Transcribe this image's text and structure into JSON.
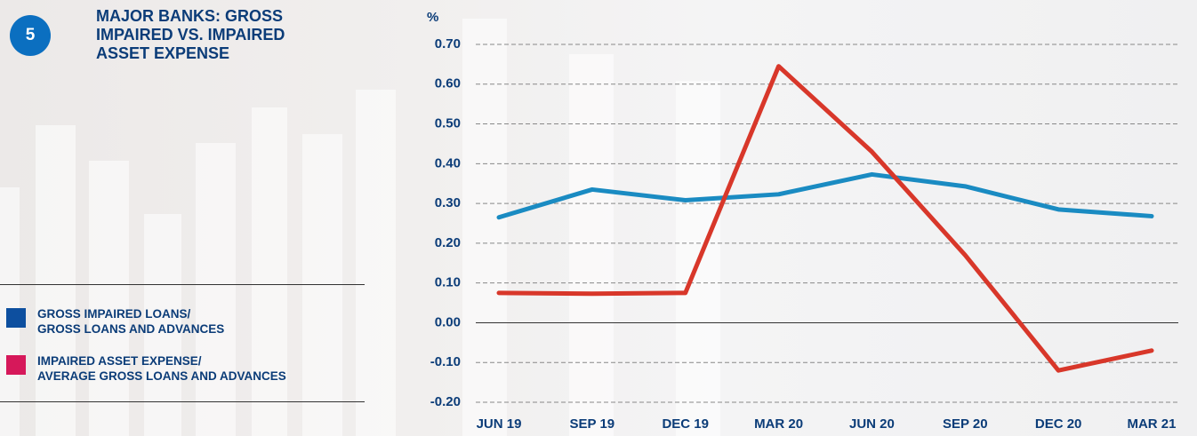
{
  "figure_number": "5",
  "chart_data": {
    "type": "line",
    "title": "MAJOR BANKS: GROSS\nIMPAIRED VS. IMPAIRED\nASSET EXPENSE",
    "y_label": "%",
    "categories": [
      "JUN 19",
      "SEP 19",
      "DEC 19",
      "MAR 20",
      "JUN 20",
      "SEP 20",
      "DEC 20",
      "MAR 21"
    ],
    "series": [
      {
        "name": "GROSS IMPAIRED LOANS/\nGROSS LOANS AND ADVANCES",
        "color": "#1a8bc2",
        "legend_color": "#0d4f9f",
        "values": [
          0.265,
          0.335,
          0.308,
          0.323,
          0.373,
          0.343,
          0.285,
          0.268
        ]
      },
      {
        "name": "IMPAIRED ASSET EXPENSE/\nAVERAGE GROSS LOANS AND ADVANCES",
        "color": "#d8372a",
        "legend_color": "#d6185a",
        "values": [
          0.075,
          0.073,
          0.075,
          0.645,
          0.43,
          0.17,
          -0.12,
          -0.07
        ]
      }
    ],
    "ylim": [
      -0.2,
      0.7
    ],
    "yticks": [
      {
        "value": 0.7,
        "label": "0.70"
      },
      {
        "value": 0.6,
        "label": "0.60"
      },
      {
        "value": 0.5,
        "label": "0.50"
      },
      {
        "value": 0.4,
        "label": "0.40"
      },
      {
        "value": 0.3,
        "label": "0.30"
      },
      {
        "value": 0.2,
        "label": "0.20"
      },
      {
        "value": 0.1,
        "label": "0.10"
      },
      {
        "value": 0,
        "label": "0.00"
      },
      {
        "value": -0.1,
        "label": "-0.10"
      },
      {
        "value": -0.2,
        "label": "-0.20"
      }
    ],
    "grid": true
  }
}
